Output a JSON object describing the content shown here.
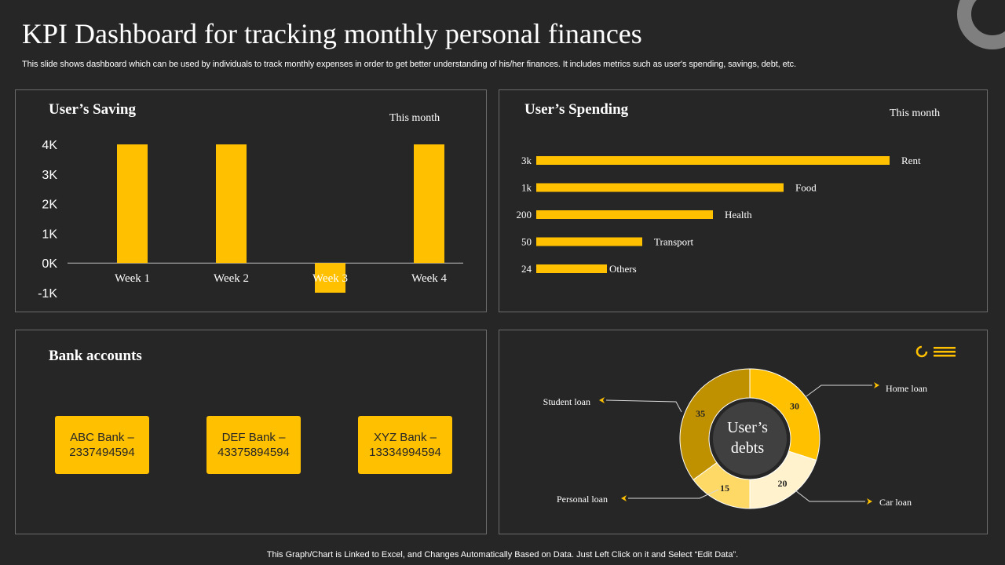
{
  "header": {
    "title": "KPI Dashboard for tracking monthly personal finances",
    "subtitle": "This slide shows dashboard which can be used by individuals to track monthly expenses in order to get better understanding of his/her finances. It includes metrics such as user's spending, savings, debt, etc."
  },
  "colors": {
    "background": "#262626",
    "accent": "#ffc000",
    "panel_border": "#6b6b6b",
    "debt_student": "#bf9000",
    "debt_home": "#ffc000",
    "debt_car": "#fff2cc",
    "debt_personal": "#ffd966",
    "donut_center": "#404040"
  },
  "saving": {
    "title": "User’s Saving",
    "period": "This month"
  },
  "spending": {
    "title": "User’s Spending",
    "period": "This month"
  },
  "bank": {
    "title": "Bank accounts",
    "accounts": [
      {
        "name": "ABC Bank –",
        "number": "2337494594"
      },
      {
        "name": "DEF Bank –",
        "number": "43375894594"
      },
      {
        "name": "XYZ  Bank –",
        "number": "13334994594"
      }
    ]
  },
  "debts": {
    "center_line1": "User’s",
    "center_line2": "debts",
    "legend_icons": [
      "donut-icon",
      "bars-icon"
    ]
  },
  "chart_data": [
    {
      "type": "bar",
      "title": "User’s Saving",
      "categories": [
        "Week  1",
        "Week  2",
        "Week  3",
        "Week  4"
      ],
      "values": [
        4000,
        4000,
        -1000,
        4000
      ],
      "yticks": [
        "4K",
        "3K",
        "2K",
        "1K",
        "0K",
        "-1K"
      ],
      "ylim": [
        -1000,
        4000
      ],
      "grid": false
    },
    {
      "type": "bar",
      "orientation": "horizontal",
      "title": "User’s Spending",
      "categories": [
        "Rent",
        "Food",
        "Health",
        "Transport",
        "Others"
      ],
      "value_labels": [
        "3k",
        "1k",
        "200",
        "50",
        "24"
      ],
      "grid": false
    },
    {
      "type": "pie",
      "title": "User’s debts",
      "categories": [
        "Home loan",
        "Car loan",
        "Personal loan",
        "Student loan"
      ],
      "values": [
        30,
        20,
        15,
        35
      ]
    }
  ],
  "footer": {
    "text": "This Graph/Chart is Linked to Excel, and Changes Automatically Based on Data. Just Left Click on it and Select “Edit Data”."
  }
}
